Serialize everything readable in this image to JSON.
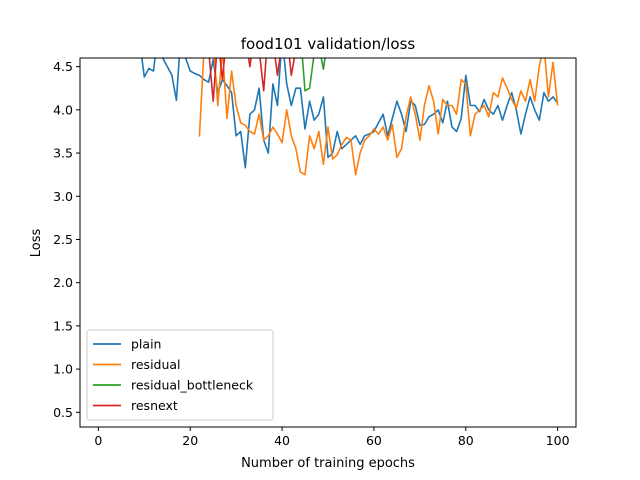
{
  "chart_data": {
    "type": "line",
    "title": "food101 validation/loss",
    "xlabel": "Number of training epochs",
    "ylabel": "Loss",
    "xlim": [
      -4,
      104
    ],
    "ylim": [
      0.33,
      4.6
    ],
    "xticks": [
      0,
      20,
      40,
      60,
      80,
      100
    ],
    "yticks": [
      0.5,
      1.0,
      1.5,
      2.0,
      2.5,
      3.0,
      3.5,
      4.0,
      4.5
    ],
    "ytick_labels": [
      "0.5",
      "1.0",
      "1.5",
      "2.0",
      "2.5",
      "3.0",
      "3.5",
      "4.0",
      "4.5"
    ],
    "grid": false,
    "legend_position": "lower-left",
    "series": [
      {
        "name": "plain",
        "color": "#1f77b4",
        "x": [
          9,
          10,
          11,
          12,
          13,
          14,
          15,
          16,
          17,
          18,
          19,
          20,
          21,
          22,
          23,
          24,
          25,
          26,
          27,
          28,
          29,
          30,
          31,
          32,
          33,
          34,
          35,
          36,
          37,
          38,
          39,
          40,
          41,
          42,
          43,
          44,
          45,
          46,
          47,
          48,
          49,
          50,
          51,
          52,
          53,
          54,
          55,
          56,
          57,
          58,
          59,
          60,
          61,
          62,
          63,
          64,
          65,
          66,
          67,
          68,
          69,
          70,
          71,
          72,
          73,
          74,
          75,
          76,
          77,
          78,
          79,
          80,
          81,
          82,
          83,
          84,
          85,
          86,
          87,
          88,
          89,
          90,
          91,
          92,
          93,
          94,
          95,
          96,
          97,
          98,
          99,
          100
        ],
        "y": [
          4.8,
          4.38,
          4.48,
          4.45,
          4.9,
          4.6,
          4.5,
          4.4,
          4.11,
          4.9,
          4.6,
          4.45,
          4.42,
          4.4,
          4.35,
          4.32,
          4.58,
          4.2,
          4.35,
          4.28,
          4.2,
          3.7,
          3.75,
          3.33,
          3.95,
          4.0,
          4.25,
          3.65,
          3.5,
          4.3,
          4.05,
          4.85,
          4.3,
          4.05,
          4.25,
          4.25,
          3.78,
          4.1,
          3.88,
          3.95,
          4.15,
          3.45,
          3.5,
          3.75,
          3.55,
          3.6,
          3.65,
          3.7,
          3.6,
          3.7,
          3.72,
          3.75,
          3.85,
          3.95,
          3.7,
          3.9,
          4.1,
          3.95,
          3.75,
          4.1,
          4.05,
          3.82,
          3.83,
          3.92,
          3.95,
          4.0,
          3.85,
          4.1,
          3.8,
          3.75,
          3.9,
          4.4,
          4.05,
          4.05,
          3.98,
          4.12,
          4.0,
          3.95,
          4.05,
          3.88,
          4.05,
          4.2,
          4.0,
          3.72,
          3.95,
          4.15,
          4.0,
          3.88,
          4.2,
          4.1,
          4.15,
          4.08
        ]
      },
      {
        "name": "residual",
        "color": "#ff7f0e",
        "x": [
          22,
          23,
          24,
          25,
          26,
          27,
          28,
          29,
          30,
          31,
          32,
          33,
          34,
          35,
          36,
          37,
          38,
          39,
          40,
          41,
          42,
          43,
          44,
          45,
          46,
          47,
          48,
          49,
          50,
          51,
          52,
          53,
          54,
          55,
          56,
          57,
          58,
          59,
          60,
          61,
          62,
          63,
          64,
          65,
          66,
          67,
          68,
          69,
          70,
          71,
          72,
          73,
          74,
          75,
          76,
          77,
          78,
          79,
          80,
          81,
          82,
          83,
          84,
          85,
          86,
          87,
          88,
          89,
          90,
          91,
          92,
          93,
          94,
          95,
          96,
          97,
          98,
          99,
          100
        ],
        "y": [
          3.69,
          4.7,
          4.9,
          4.8,
          4.05,
          4.7,
          3.9,
          4.45,
          4.05,
          3.85,
          3.82,
          3.75,
          3.72,
          3.95,
          3.65,
          3.7,
          3.8,
          3.72,
          3.62,
          4.0,
          3.7,
          3.55,
          3.28,
          3.25,
          3.7,
          3.55,
          3.75,
          3.37,
          3.8,
          3.43,
          3.48,
          3.6,
          3.68,
          3.65,
          3.25,
          3.5,
          3.65,
          3.7,
          3.78,
          3.72,
          3.8,
          3.65,
          3.83,
          3.45,
          3.55,
          3.92,
          4.15,
          3.95,
          3.65,
          4.05,
          4.28,
          4.1,
          3.72,
          4.12,
          4.05,
          4.05,
          3.95,
          4.35,
          4.3,
          3.7,
          3.95,
          4.0,
          4.05,
          3.92,
          4.2,
          4.15,
          4.37,
          4.25,
          4.12,
          4.02,
          4.22,
          4.1,
          4.35,
          4.1,
          4.5,
          4.75,
          4.15,
          4.55,
          4.05
        ]
      },
      {
        "name": "residual_bottleneck",
        "color": "#2ca02c",
        "x": [
          44,
          45,
          46,
          47,
          48,
          49,
          50
        ],
        "y": [
          4.9,
          4.22,
          4.25,
          4.65,
          4.75,
          4.47,
          4.85
        ]
      },
      {
        "name": "resnext",
        "color": "#d62728",
        "x": [
          24,
          25,
          26,
          27,
          28,
          29,
          30,
          31,
          32,
          33,
          34,
          35,
          36,
          37,
          38,
          39,
          40,
          41,
          42,
          43,
          44,
          45
        ],
        "y": [
          4.7,
          4.1,
          4.85,
          4.35,
          4.9,
          4.75,
          4.9,
          4.62,
          4.85,
          4.5,
          4.9,
          4.7,
          4.22,
          4.95,
          4.8,
          4.4,
          4.8,
          4.9,
          4.4,
          4.7,
          4.6,
          4.9
        ]
      }
    ]
  }
}
